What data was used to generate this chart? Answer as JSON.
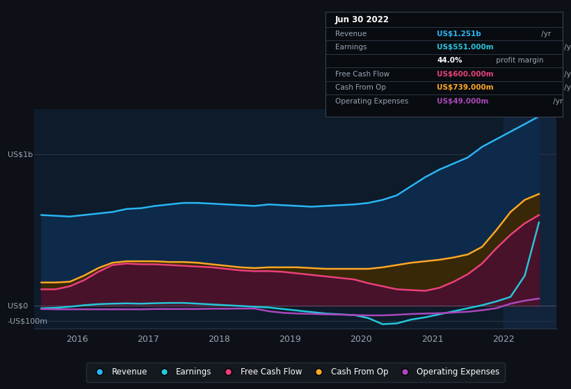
{
  "bg_color": "#0d1117",
  "chart_bg": "#0d1b2a",
  "series_colors": {
    "revenue": "#29b6f6",
    "earnings": "#26c6da",
    "free_cash_flow": "#ec407a",
    "cash_from_op": "#ffa726",
    "operating_expenses": "#ab47bc"
  },
  "x_values": [
    2015.5,
    2015.7,
    2015.9,
    2016.1,
    2016.3,
    2016.5,
    2016.7,
    2016.9,
    2017.1,
    2017.3,
    2017.5,
    2017.7,
    2017.9,
    2018.1,
    2018.3,
    2018.5,
    2018.7,
    2018.9,
    2019.1,
    2019.3,
    2019.5,
    2019.7,
    2019.9,
    2020.1,
    2020.3,
    2020.5,
    2020.7,
    2020.9,
    2021.1,
    2021.3,
    2021.5,
    2021.7,
    2021.9,
    2022.1,
    2022.3,
    2022.5
  ],
  "revenue": [
    600,
    595,
    590,
    600,
    610,
    620,
    640,
    645,
    660,
    670,
    680,
    680,
    675,
    670,
    665,
    660,
    670,
    665,
    660,
    655,
    660,
    665,
    670,
    680,
    700,
    730,
    790,
    850,
    900,
    940,
    980,
    1050,
    1100,
    1150,
    1200,
    1251
  ],
  "cash_from_op": [
    155,
    155,
    160,
    200,
    250,
    285,
    295,
    295,
    295,
    290,
    290,
    285,
    275,
    265,
    255,
    250,
    255,
    255,
    255,
    250,
    245,
    245,
    245,
    245,
    255,
    270,
    285,
    295,
    305,
    320,
    340,
    390,
    500,
    620,
    700,
    739
  ],
  "free_cash_flow": [
    110,
    110,
    130,
    170,
    225,
    270,
    280,
    275,
    275,
    270,
    265,
    260,
    255,
    245,
    235,
    230,
    230,
    225,
    215,
    205,
    195,
    185,
    175,
    150,
    130,
    110,
    105,
    100,
    120,
    160,
    210,
    280,
    380,
    470,
    545,
    600
  ],
  "earnings": [
    -15,
    -12,
    -5,
    5,
    12,
    15,
    17,
    15,
    18,
    20,
    20,
    15,
    10,
    5,
    0,
    -5,
    -10,
    -20,
    -30,
    -40,
    -50,
    -55,
    -60,
    -80,
    -120,
    -115,
    -90,
    -75,
    -55,
    -35,
    -15,
    5,
    30,
    60,
    200,
    551
  ],
  "operating_expenses": [
    -20,
    -22,
    -22,
    -22,
    -22,
    -22,
    -22,
    -22,
    -20,
    -20,
    -20,
    -20,
    -18,
    -18,
    -17,
    -17,
    -35,
    -45,
    -50,
    -52,
    -55,
    -57,
    -60,
    -62,
    -62,
    -58,
    -53,
    -50,
    -48,
    -43,
    -38,
    -28,
    -15,
    15,
    35,
    49
  ],
  "xlim": [
    2015.4,
    2022.75
  ],
  "ylim": [
    -150,
    1300
  ],
  "xticks": [
    2016,
    2017,
    2018,
    2019,
    2020,
    2021,
    2022
  ],
  "highlight_x_start": 2022.0,
  "legend": [
    {
      "label": "Revenue",
      "color": "#29b6f6"
    },
    {
      "label": "Earnings",
      "color": "#26c6da"
    },
    {
      "label": "Free Cash Flow",
      "color": "#ec407a"
    },
    {
      "label": "Cash From Op",
      "color": "#ffa726"
    },
    {
      "label": "Operating Expenses",
      "color": "#ab47bc"
    }
  ],
  "tooltip": {
    "title": "Jun 30 2022",
    "rows": [
      {
        "label": "Revenue",
        "value": "US$1.251b",
        "suffix": " /yr",
        "color": "#29b6f6"
      },
      {
        "label": "Earnings",
        "value": "US$551.000m",
        "suffix": " /yr",
        "color": "#26c6da"
      },
      {
        "label": "",
        "value": "44.0%",
        "suffix": " profit margin",
        "color": "#ffffff"
      },
      {
        "label": "Free Cash Flow",
        "value": "US$600.000m",
        "suffix": " /yr",
        "color": "#ec407a"
      },
      {
        "label": "Cash From Op",
        "value": "US$739.000m",
        "suffix": " /yr",
        "color": "#ffa726"
      },
      {
        "label": "Operating Expenses",
        "value": "US$49.000m",
        "suffix": " /yr",
        "color": "#ab47bc"
      }
    ]
  }
}
